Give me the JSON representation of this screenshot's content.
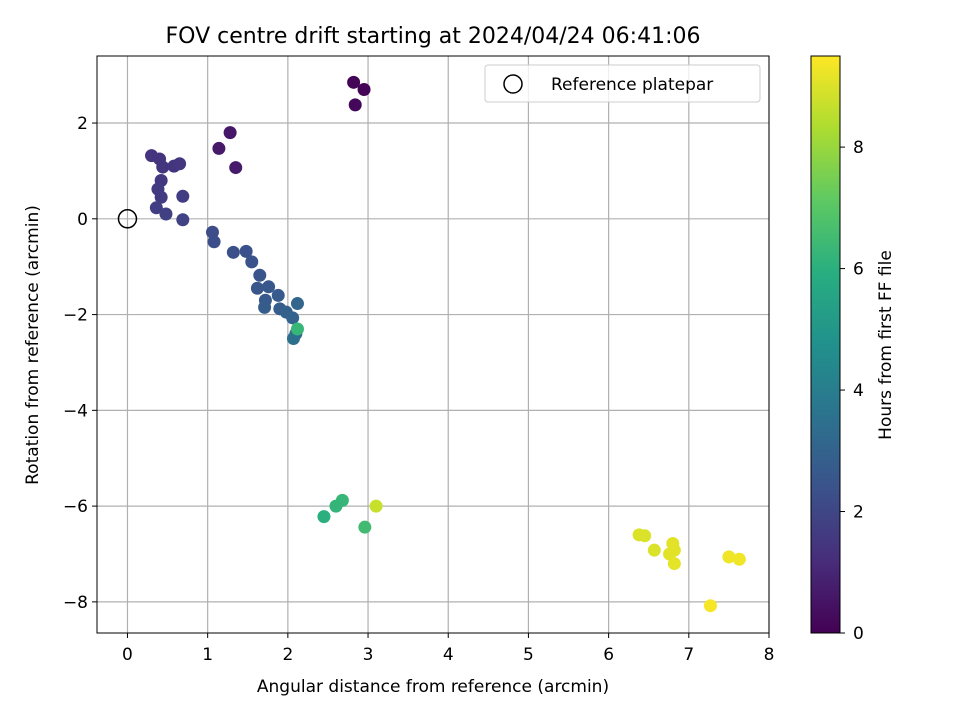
{
  "chart_data": {
    "type": "scatter",
    "title": "FOV centre drift starting at 2024/04/24 06:41:06",
    "xlabel": "Angular distance from reference (arcmin)",
    "ylabel": "Rotation from reference (arcmin)",
    "xlim": [
      -0.38,
      8.0
    ],
    "ylim": [
      -8.65,
      3.4
    ],
    "xticks": [
      0,
      1,
      2,
      3,
      4,
      5,
      6,
      7,
      8
    ],
    "yticks": [
      -8,
      -6,
      -4,
      -2,
      0,
      2
    ],
    "grid": true,
    "legend": {
      "position": "top-right",
      "entries": [
        "Reference platepar"
      ]
    },
    "reference_point": {
      "x": 0,
      "y": 0
    },
    "colorbar": {
      "label": "Hours from first FF file",
      "colormap": "viridis",
      "range": [
        0,
        9.5
      ],
      "ticks": [
        0,
        2,
        4,
        6,
        8
      ]
    },
    "points": [
      {
        "x": 2.82,
        "y": 2.85,
        "hours": 0.1
      },
      {
        "x": 2.95,
        "y": 2.7,
        "hours": 0.1
      },
      {
        "x": 2.84,
        "y": 2.38,
        "hours": 0.15
      },
      {
        "x": 1.28,
        "y": 1.8,
        "hours": 0.6
      },
      {
        "x": 1.14,
        "y": 1.47,
        "hours": 0.65
      },
      {
        "x": 1.35,
        "y": 1.07,
        "hours": 0.7
      },
      {
        "x": 0.3,
        "y": 1.32,
        "hours": 1.4
      },
      {
        "x": 0.4,
        "y": 1.25,
        "hours": 1.4
      },
      {
        "x": 0.44,
        "y": 1.08,
        "hours": 1.45
      },
      {
        "x": 0.58,
        "y": 1.1,
        "hours": 1.45
      },
      {
        "x": 0.65,
        "y": 1.15,
        "hours": 1.5
      },
      {
        "x": 0.42,
        "y": 0.8,
        "hours": 1.55
      },
      {
        "x": 0.38,
        "y": 0.62,
        "hours": 1.6
      },
      {
        "x": 0.42,
        "y": 0.45,
        "hours": 1.65
      },
      {
        "x": 0.69,
        "y": 0.47,
        "hours": 1.7
      },
      {
        "x": 0.36,
        "y": 0.23,
        "hours": 1.75
      },
      {
        "x": 0.48,
        "y": 0.1,
        "hours": 1.8
      },
      {
        "x": 0.69,
        "y": -0.02,
        "hours": 1.85
      },
      {
        "x": 1.06,
        "y": -0.28,
        "hours": 2.2
      },
      {
        "x": 1.08,
        "y": -0.48,
        "hours": 2.25
      },
      {
        "x": 1.32,
        "y": -0.7,
        "hours": 2.3
      },
      {
        "x": 1.48,
        "y": -0.68,
        "hours": 2.35
      },
      {
        "x": 1.55,
        "y": -0.9,
        "hours": 2.4
      },
      {
        "x": 1.65,
        "y": -1.18,
        "hours": 2.5
      },
      {
        "x": 1.62,
        "y": -1.45,
        "hours": 2.55
      },
      {
        "x": 1.76,
        "y": -1.42,
        "hours": 2.6
      },
      {
        "x": 1.72,
        "y": -1.7,
        "hours": 2.65
      },
      {
        "x": 1.88,
        "y": -1.6,
        "hours": 2.7
      },
      {
        "x": 1.71,
        "y": -1.85,
        "hours": 2.75
      },
      {
        "x": 1.9,
        "y": -1.88,
        "hours": 2.8
      },
      {
        "x": 1.98,
        "y": -1.95,
        "hours": 2.9
      },
      {
        "x": 2.06,
        "y": -2.07,
        "hours": 3.0
      },
      {
        "x": 2.12,
        "y": -1.77,
        "hours": 3.1
      },
      {
        "x": 2.1,
        "y": -2.4,
        "hours": 3.3
      },
      {
        "x": 2.07,
        "y": -2.5,
        "hours": 3.5
      },
      {
        "x": 2.12,
        "y": -2.3,
        "hours": 6.3
      },
      {
        "x": 2.68,
        "y": -5.88,
        "hours": 6.3
      },
      {
        "x": 2.6,
        "y": -6.0,
        "hours": 6.2
      },
      {
        "x": 2.45,
        "y": -6.22,
        "hours": 6.0
      },
      {
        "x": 3.1,
        "y": -6.0,
        "hours": 8.7
      },
      {
        "x": 2.96,
        "y": -6.44,
        "hours": 6.5
      },
      {
        "x": 6.38,
        "y": -6.6,
        "hours": 9.0
      },
      {
        "x": 6.45,
        "y": -6.62,
        "hours": 9.0
      },
      {
        "x": 6.57,
        "y": -6.92,
        "hours": 9.0
      },
      {
        "x": 6.8,
        "y": -6.78,
        "hours": 9.1
      },
      {
        "x": 6.82,
        "y": -6.92,
        "hours": 9.1
      },
      {
        "x": 6.76,
        "y": -7.0,
        "hours": 9.1
      },
      {
        "x": 6.82,
        "y": -7.2,
        "hours": 9.15
      },
      {
        "x": 7.5,
        "y": -7.06,
        "hours": 9.3
      },
      {
        "x": 7.63,
        "y": -7.11,
        "hours": 9.3
      },
      {
        "x": 7.27,
        "y": -8.08,
        "hours": 9.4
      }
    ]
  }
}
